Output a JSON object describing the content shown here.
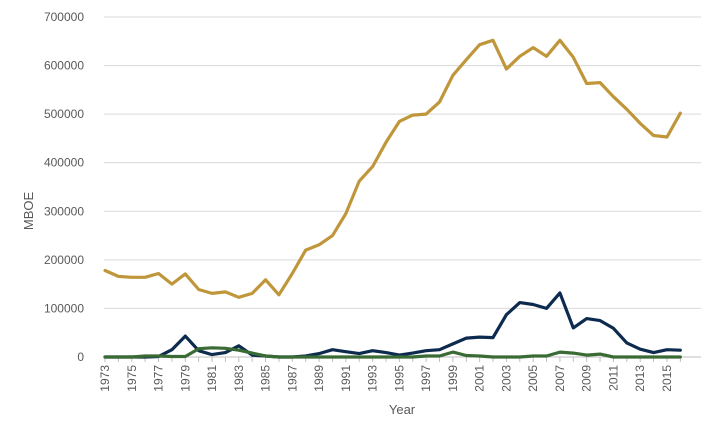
{
  "chart_data": {
    "type": "line",
    "title": "",
    "xlabel": "Year",
    "ylabel": "MBOE",
    "ylim": [
      0,
      700000
    ],
    "yticks": [
      0,
      100000,
      200000,
      300000,
      400000,
      500000,
      600000,
      700000
    ],
    "ytick_labels": [
      "0",
      "100000",
      "200000",
      "300000",
      "400000",
      "500000",
      "600000",
      "700000"
    ],
    "xtick_labels": [
      "1973",
      "1975",
      "1977",
      "1979",
      "1981",
      "1983",
      "1985",
      "1987",
      "1989",
      "1991",
      "1993",
      "1995",
      "1997",
      "1999",
      "2001",
      "2003",
      "2005",
      "2007",
      "2009",
      "2011",
      "2013",
      "2015"
    ],
    "x": [
      1973,
      1974,
      1975,
      1976,
      1977,
      1978,
      1979,
      1980,
      1981,
      1982,
      1983,
      1984,
      1985,
      1986,
      1987,
      1988,
      1989,
      1990,
      1991,
      1992,
      1993,
      1994,
      1995,
      1996,
      1997,
      1998,
      1999,
      2000,
      2001,
      2002,
      2003,
      2004,
      2005,
      2006,
      2007,
      2008,
      2009,
      2010,
      2011,
      2012,
      2013,
      2014,
      2015,
      2016
    ],
    "grid": true,
    "legend": "none",
    "series": [
      {
        "color": "#C0963A",
        "values": [
          178000,
          166000,
          164000,
          164000,
          172000,
          150000,
          171000,
          139000,
          131000,
          134000,
          123000,
          131000,
          159000,
          128000,
          172000,
          220000,
          231000,
          250000,
          295000,
          362000,
          392000,
          442000,
          485000,
          498000,
          500000,
          525000,
          580000,
          612000,
          643000,
          652000,
          593000,
          619000,
          637000,
          619000,
          652000,
          617000,
          563000,
          565000,
          536000,
          510000,
          481000,
          456000,
          453000,
          502000
        ]
      },
      {
        "color": "#0D2B4E",
        "values": [
          0,
          0,
          0,
          0,
          1000,
          15000,
          43000,
          13000,
          5000,
          9000,
          23000,
          4000,
          2000,
          0,
          0,
          2000,
          7000,
          15000,
          11000,
          7000,
          13000,
          9000,
          4000,
          8000,
          13000,
          15000,
          27000,
          39000,
          41000,
          40000,
          87000,
          112000,
          108000,
          100000,
          132000,
          60000,
          79000,
          75000,
          59000,
          29000,
          16000,
          9000,
          15000,
          14000
        ]
      },
      {
        "color": "#3A6B35",
        "values": [
          0,
          0,
          0,
          2000,
          2000,
          1000,
          1000,
          17000,
          19000,
          18000,
          14000,
          8000,
          2000,
          0,
          0,
          0,
          0,
          0,
          0,
          0,
          0,
          0,
          0,
          0,
          2000,
          2000,
          10000,
          3000,
          2000,
          0,
          0,
          0,
          2000,
          2000,
          10000,
          8000,
          4000,
          6000,
          0,
          0,
          0,
          0,
          0,
          0
        ]
      }
    ]
  }
}
